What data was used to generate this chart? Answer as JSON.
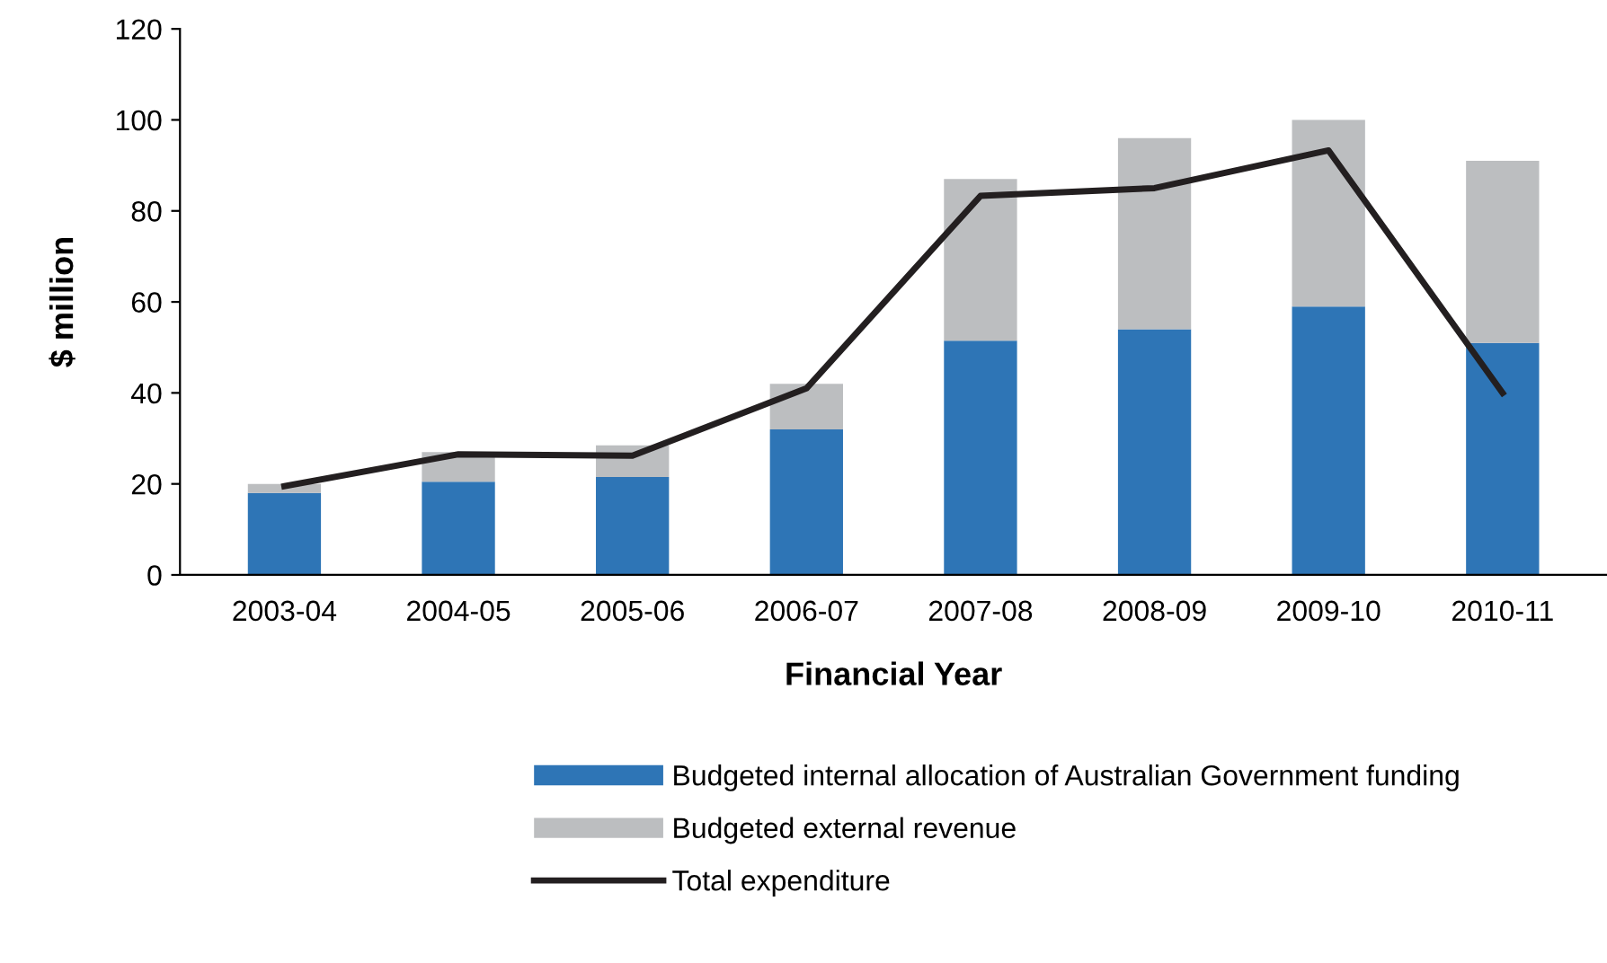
{
  "chart_data": {
    "type": "bar",
    "stacked": true,
    "xlabel": "Financial Year",
    "ylabel": "$ million",
    "categories": [
      "2003-04",
      "2004-05",
      "2005-06",
      "2006-07",
      "2007-08",
      "2008-09",
      "2009-10",
      "2010-11"
    ],
    "series": [
      {
        "name": "Budgeted internal allocation of Australian Government funding",
        "color": "#2e75b6",
        "values": [
          18,
          20.5,
          21.5,
          32,
          51.5,
          54,
          59,
          51
        ]
      },
      {
        "name": "Budgeted external revenue",
        "color": "#bcbec0",
        "values": [
          2,
          6.5,
          7,
          10,
          35.5,
          42,
          41,
          40
        ]
      },
      {
        "name": "Total expenditure",
        "type": "line",
        "color": "#231f20",
        "values": [
          19.5,
          26.5,
          26.2,
          41,
          83.3,
          85,
          93.3,
          40
        ]
      }
    ],
    "ylim": [
      0,
      120
    ],
    "yticks": [
      0,
      20,
      40,
      60,
      80,
      100,
      120
    ],
    "grid": false,
    "legend": "bottom"
  }
}
